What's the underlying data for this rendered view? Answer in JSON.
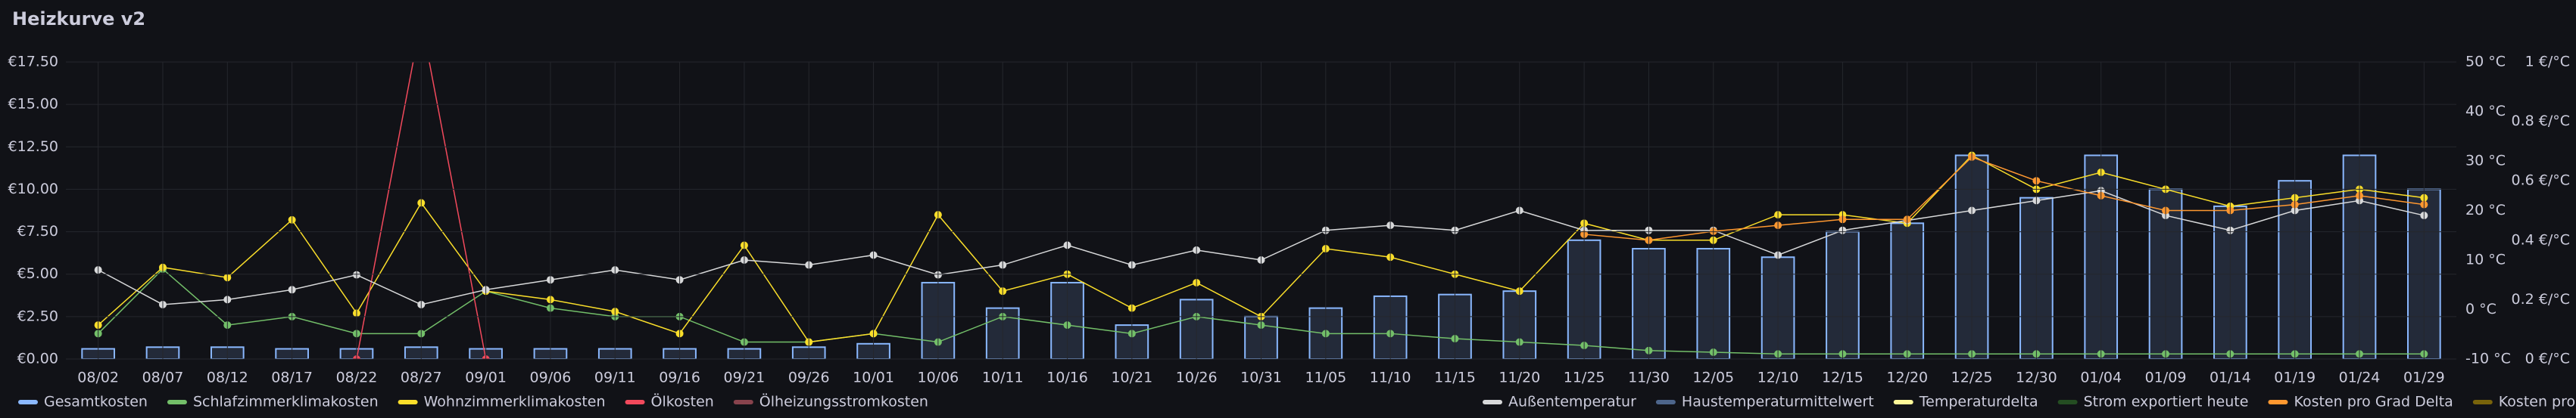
{
  "chart_data": {
    "type": "bar",
    "title": "Heizkurve v2",
    "categories": [
      "08/02",
      "08/07",
      "08/12",
      "08/17",
      "08/22",
      "08/27",
      "09/01",
      "09/06",
      "09/11",
      "09/16",
      "09/21",
      "09/26",
      "10/01",
      "10/06",
      "10/11",
      "10/16",
      "10/21",
      "10/26",
      "10/31",
      "11/05",
      "11/10",
      "11/15",
      "11/20",
      "11/25",
      "11/30",
      "12/05",
      "12/10",
      "12/15",
      "12/20",
      "12/25",
      "12/30",
      "01/04",
      "01/09",
      "01/14",
      "01/19",
      "01/24",
      "01/29"
    ],
    "ylim": [
      0,
      17.5
    ],
    "yticks": [
      {
        "value": 0,
        "label": "€0.00"
      },
      {
        "value": 2.5,
        "label": "€2.50"
      },
      {
        "value": 5,
        "label": "€5.00"
      },
      {
        "value": 7.5,
        "label": "€7.50"
      },
      {
        "value": 10,
        "label": "€10.00"
      },
      {
        "value": 12.5,
        "label": "€12.50"
      },
      {
        "value": 15,
        "label": "€15.00"
      },
      {
        "value": 17.5,
        "label": "€17.50"
      }
    ],
    "y2lim": [
      -10,
      50
    ],
    "y2ticks": [
      {
        "value": -10,
        "label": "-10 °C"
      },
      {
        "value": 0,
        "label": "0 °C"
      },
      {
        "value": 10,
        "label": "10 °C"
      },
      {
        "value": 20,
        "label": "20 °C"
      },
      {
        "value": 30,
        "label": "30 °C"
      },
      {
        "value": 40,
        "label": "40 °C"
      },
      {
        "value": 50,
        "label": "50 °C"
      }
    ],
    "y3lim": [
      0,
      1
    ],
    "y3ticks": [
      {
        "value": 0,
        "label": "0 €/°C"
      },
      {
        "value": 0.2,
        "label": "0.2 €/°C"
      },
      {
        "value": 0.4,
        "label": "0.4 €/°C"
      },
      {
        "value": 0.6,
        "label": "0.6 €/°C"
      },
      {
        "value": 0.8,
        "label": "0.8 €/°C"
      },
      {
        "value": 1,
        "label": "1 €/°C"
      }
    ],
    "grid": true,
    "series": [
      {
        "name": "Gesamtkosten",
        "color": "#8ab8ff",
        "kind": "bar",
        "axis": "y",
        "legend": "left",
        "values": [
          0.6,
          0.7,
          0.7,
          0.6,
          0.6,
          0.7,
          0.6,
          0.6,
          0.6,
          0.6,
          0.6,
          0.7,
          0.9,
          4.5,
          3,
          4.5,
          2,
          3.5,
          2.5,
          3,
          3.7,
          3.8,
          4,
          7,
          6.5,
          6.5,
          6,
          7.5,
          8,
          12,
          9.5,
          12,
          10,
          9,
          10.5,
          12,
          10
        ]
      },
      {
        "name": "Schlafzimmerklimakosten",
        "color": "#73bf69",
        "kind": "line",
        "axis": "y",
        "legend": "left",
        "values": [
          1.5,
          5.3,
          2,
          2.5,
          1.5,
          1.5,
          4,
          3,
          2.5,
          2.5,
          1,
          1,
          1.5,
          1,
          2.5,
          2,
          1.5,
          2.5,
          2,
          1.5,
          1.5,
          1.2,
          1,
          0.8,
          0.5,
          0.4,
          0.3,
          0.3,
          0.3,
          0.3,
          0.3,
          0.3,
          0.3,
          0.3,
          0.3,
          0.3,
          0.3
        ]
      },
      {
        "name": "Wohnzimmerklimakosten",
        "color": "#fade2a",
        "kind": "line",
        "axis": "y",
        "legend": "left",
        "values": [
          2,
          5.4,
          4.8,
          8.2,
          2.7,
          9.2,
          4,
          3.5,
          2.8,
          1.5,
          6.7,
          1,
          1.5,
          8.5,
          4,
          5,
          3,
          4.5,
          2.5,
          6.5,
          6,
          5,
          4,
          8,
          7,
          7,
          8.5,
          8.5,
          8,
          12,
          10,
          11,
          10,
          9,
          9.5,
          10,
          9.5
        ]
      },
      {
        "name": "Ölkosten",
        "color": "#f2495c",
        "kind": "line",
        "axis": "y",
        "legend": "left",
        "values": [
          null,
          null,
          null,
          null,
          0,
          20,
          0,
          null,
          null,
          null,
          null,
          null,
          null,
          null,
          null,
          null,
          null,
          null,
          null,
          null,
          null,
          null,
          null,
          null,
          null,
          null,
          null,
          null,
          null,
          null,
          null,
          null,
          null,
          null,
          null,
          null,
          null
        ]
      },
      {
        "name": "Ölheizungsstromkosten",
        "color": "#ff7383",
        "kind": "line",
        "axis": "y",
        "legend": "left",
        "hidden": true,
        "values": [
          null,
          null,
          null,
          null,
          null,
          null,
          null,
          null,
          null,
          null,
          null,
          null,
          null,
          null,
          null,
          null,
          null,
          null,
          null,
          null,
          null,
          null,
          null,
          null,
          null,
          null,
          null,
          null,
          null,
          null,
          null,
          null,
          null,
          null,
          null,
          null,
          null
        ]
      },
      {
        "name": "Außentemperatur",
        "color": "#d8d9da",
        "kind": "line",
        "axis": "y2",
        "legend": "right",
        "values": [
          8,
          1,
          2,
          4,
          7,
          1,
          4,
          6,
          8,
          6,
          10,
          9,
          11,
          7,
          9,
          13,
          9,
          12,
          10,
          16,
          17,
          16,
          20,
          16,
          16,
          16,
          11,
          16,
          18,
          20,
          22,
          24,
          19,
          16,
          20,
          22,
          19
        ]
      },
      {
        "name": "Haustemperaturmittelwert",
        "color": "#8ab8ff",
        "kind": "line",
        "axis": "y2",
        "legend": "right",
        "hidden": true,
        "values": [
          null,
          null,
          null,
          null,
          null,
          null,
          null,
          null,
          null,
          null,
          null,
          null,
          null,
          null,
          null,
          null,
          null,
          null,
          null,
          null,
          null,
          null,
          null,
          null,
          null,
          null,
          null,
          null,
          null,
          null,
          null,
          null,
          null,
          null,
          null,
          null,
          null
        ]
      },
      {
        "name": "Temperaturdelta",
        "color": "#fff899",
        "kind": "line",
        "axis": "y2",
        "legend": "right",
        "values": [
          null,
          null,
          null,
          null,
          null,
          null,
          null,
          null,
          null,
          null,
          null,
          null,
          null,
          null,
          null,
          null,
          null,
          null,
          null,
          null,
          null,
          null,
          null,
          null,
          null,
          null,
          null,
          null,
          null,
          null,
          null,
          null,
          null,
          null,
          null,
          null,
          null
        ]
      },
      {
        "name": "Strom exportiert heute",
        "color": "#37872d",
        "kind": "line",
        "axis": "y",
        "legend": "right",
        "hidden": true,
        "values": [
          null,
          null,
          null,
          null,
          null,
          null,
          null,
          null,
          null,
          null,
          null,
          null,
          null,
          null,
          null,
          null,
          null,
          null,
          null,
          null,
          null,
          null,
          null,
          null,
          null,
          null,
          null,
          null,
          null,
          null,
          null,
          null,
          null,
          null,
          null,
          null,
          null
        ]
      },
      {
        "name": "Kosten pro Grad Delta",
        "color": "#ff9830",
        "kind": "line",
        "axis": "y3",
        "legend": "right",
        "values": [
          null,
          null,
          null,
          null,
          null,
          null,
          null,
          null,
          null,
          null,
          null,
          null,
          null,
          null,
          null,
          null,
          null,
          null,
          null,
          null,
          null,
          null,
          null,
          0.42,
          0.4,
          0.43,
          0.45,
          0.47,
          0.47,
          0.68,
          0.6,
          0.55,
          0.5,
          0.5,
          0.52,
          0.55,
          0.52
        ]
      },
      {
        "name": "Kosten pro Grad Delta (old)",
        "color": "#e0b400",
        "kind": "line",
        "axis": "y3",
        "legend": "right",
        "hidden": true,
        "values": [
          null,
          null,
          null,
          null,
          null,
          null,
          null,
          null,
          null,
          null,
          null,
          null,
          null,
          null,
          null,
          null,
          null,
          null,
          null,
          null,
          null,
          null,
          null,
          null,
          null,
          null,
          null,
          null,
          null,
          null,
          null,
          null,
          null,
          null,
          null,
          null,
          null
        ]
      }
    ]
  }
}
